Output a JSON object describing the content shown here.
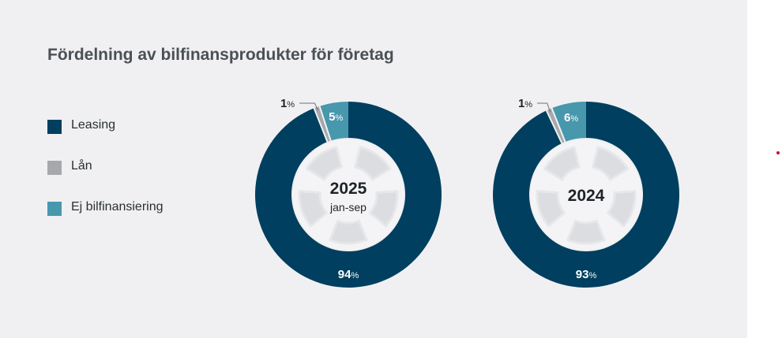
{
  "title": "Fördelning av bilfinansprodukter för företag",
  "legend": [
    {
      "label": "Leasing",
      "color": "#003f5f"
    },
    {
      "label": "Lån",
      "color": "#a6a8ab"
    },
    {
      "label": "Ej bilfinansiering",
      "color": "#4797ad"
    }
  ],
  "chart_data": [
    {
      "type": "pie",
      "center_label": "2025",
      "center_sublabel": "jan-sep",
      "slices": [
        {
          "name": "Leasing",
          "value": 94,
          "label": "94",
          "color": "#003f5f"
        },
        {
          "name": "Lån",
          "value": 1,
          "label": "1",
          "color": "#a6a8ab"
        },
        {
          "name": "Ej bilfinansiering",
          "value": 5,
          "label": "5",
          "color": "#4797ad"
        }
      ]
    },
    {
      "type": "pie",
      "center_label": "2024",
      "center_sublabel": "",
      "slices": [
        {
          "name": "Leasing",
          "value": 93,
          "label": "93",
          "color": "#003f5f"
        },
        {
          "name": "Lån",
          "value": 1,
          "label": "1",
          "color": "#a6a8ab"
        },
        {
          "name": "Ej bilfinansiering",
          "value": 6,
          "label": "6",
          "color": "#4797ad"
        }
      ]
    }
  ],
  "percent_symbol": "%"
}
